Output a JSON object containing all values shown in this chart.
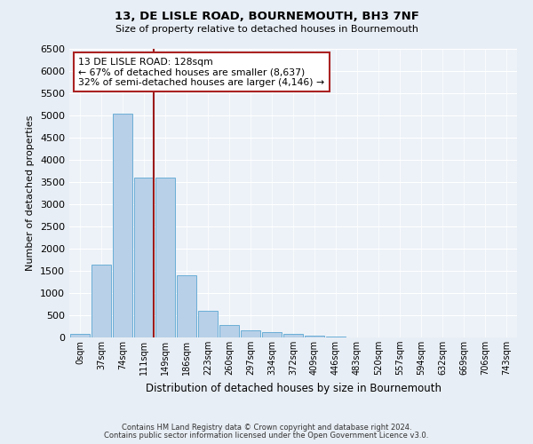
{
  "title1": "13, DE LISLE ROAD, BOURNEMOUTH, BH3 7NF",
  "title2": "Size of property relative to detached houses in Bournemouth",
  "xlabel": "Distribution of detached houses by size in Bournemouth",
  "ylabel": "Number of detached properties",
  "footnote1": "Contains HM Land Registry data © Crown copyright and database right 2024.",
  "footnote2": "Contains public sector information licensed under the Open Government Licence v3.0.",
  "bar_labels": [
    "0sqm",
    "37sqm",
    "74sqm",
    "111sqm",
    "149sqm",
    "186sqm",
    "223sqm",
    "260sqm",
    "297sqm",
    "334sqm",
    "372sqm",
    "409sqm",
    "446sqm",
    "483sqm",
    "520sqm",
    "557sqm",
    "594sqm",
    "632sqm",
    "669sqm",
    "706sqm",
    "743sqm"
  ],
  "bar_values": [
    75,
    1650,
    5050,
    3600,
    3600,
    1400,
    610,
    290,
    155,
    130,
    80,
    50,
    20,
    10,
    5,
    5,
    5,
    5,
    5,
    5,
    5
  ],
  "bar_color": "#b8d0e8",
  "bar_edgecolor": "#6aaed6",
  "vline_x": 3.45,
  "vline_color": "#9b1a1a",
  "annotation_title": "13 DE LISLE ROAD: 128sqm",
  "annotation_line1": "← 67% of detached houses are smaller (8,637)",
  "annotation_line2": "32% of semi-detached houses are larger (4,146) →",
  "annotation_box_color": "#aa2222",
  "ylim": [
    0,
    6500
  ],
  "yticks": [
    0,
    500,
    1000,
    1500,
    2000,
    2500,
    3000,
    3500,
    4000,
    4500,
    5000,
    5500,
    6000,
    6500
  ],
  "bg_color": "#e8eef5",
  "plot_bg_color": "#edf2f8",
  "fig_width": 6.0,
  "fig_height": 5.0,
  "dpi": 100
}
